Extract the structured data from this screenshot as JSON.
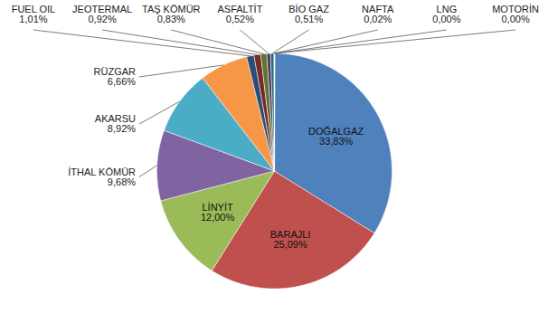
{
  "chart_data": {
    "type": "pie",
    "categories": [
      "DOĞALGAZ",
      "BARAJLI",
      "LİNYİT",
      "İTHAL KÖMÜR",
      "AKARSU",
      "RÜZGAR",
      "FUEL OIL",
      "JEOTERMAL",
      "TAŞ KÖMÜR",
      "ASFALTİT",
      "BİO GAZ",
      "NAFTA",
      "LNG",
      "MOTORİN"
    ],
    "values": [
      33.83,
      25.09,
      12.0,
      9.68,
      8.92,
      6.66,
      1.01,
      0.92,
      0.83,
      0.52,
      0.51,
      0.02,
      0.0,
      0.0
    ],
    "value_labels": [
      "33,83%",
      "25,09%",
      "12,00%",
      "9,68%",
      "8,92%",
      "6,66%",
      "1,01%",
      "0,92%",
      "0,83%",
      "0,52%",
      "0,51%",
      "0,02%",
      "0,00%",
      "0,00%"
    ],
    "colors": [
      "#4f81bd",
      "#c0504d",
      "#9bbb59",
      "#8064a2",
      "#4bacc6",
      "#f79646",
      "#2c4d75",
      "#772c2a",
      "#5f7530",
      "#4d3b62",
      "#276a7c",
      "#b65708",
      "#729aca",
      "#cd7371"
    ],
    "data_labels": true
  }
}
